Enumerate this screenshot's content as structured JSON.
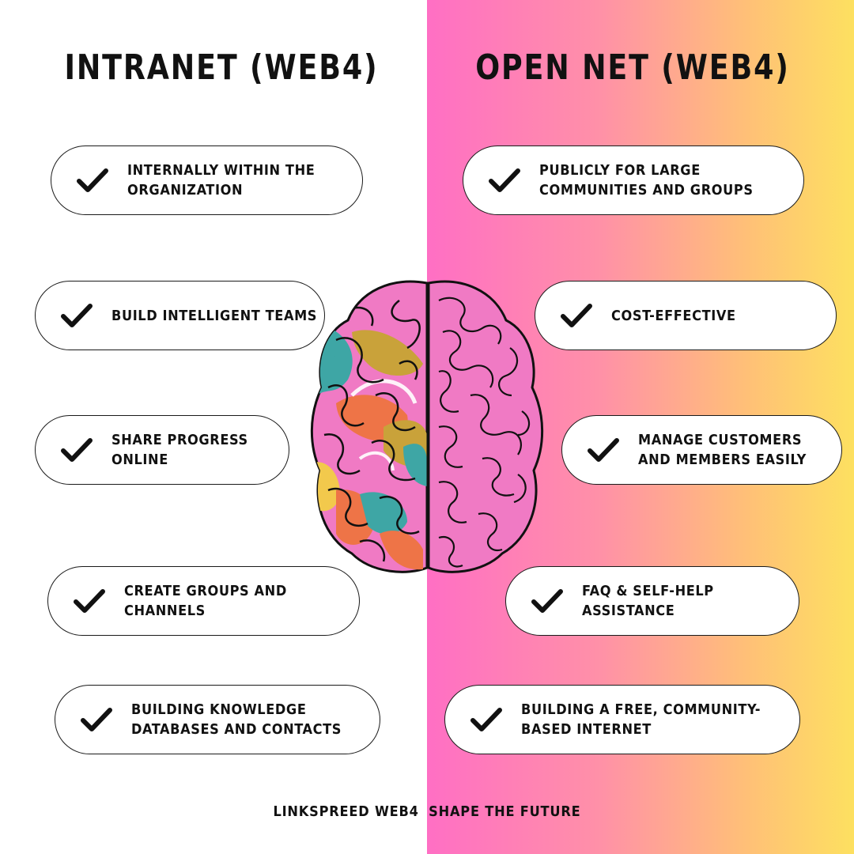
{
  "left": {
    "title": "INTRANET (WEB4)",
    "items": [
      {
        "text": "INTERNALLY WITHIN THE ORGANIZATION"
      },
      {
        "text": "BUILD INTELLIGENT TEAMS"
      },
      {
        "text": "SHARE PROGRESS ONLINE"
      },
      {
        "text": "CREATE GROUPS AND CHANNELS"
      },
      {
        "text": "BUILDING KNOWLEDGE DATABASES AND CONTACTS"
      }
    ]
  },
  "right": {
    "title": "OPEN NET (WEB4)",
    "items": [
      {
        "text": "PUBLICLY FOR LARGE COMMUNITIES AND GROUPS"
      },
      {
        "text": "COST-EFFECTIVE"
      },
      {
        "text": "MANAGE CUSTOMERS AND MEMBERS EASILY"
      },
      {
        "text": "FAQ & SELF-HELP ASSISTANCE"
      },
      {
        "text": "BUILDING A FREE, COMMUNITY-BASED INTERNET"
      }
    ]
  },
  "footer": {
    "brand": "LINKSPREED WEB4",
    "tagline": "SHAPE THE FUTURE"
  },
  "icons": {
    "check": "check-icon",
    "brain": "brain-illustration"
  },
  "colors": {
    "gradient_start": "#ff6fc4",
    "gradient_end": "#fde060",
    "brain_pink": "#f07ac4",
    "brain_teal": "#3ea6a5",
    "brain_mustard": "#c9a23a",
    "brain_orange": "#ee7447",
    "brain_yellow": "#f2c94c"
  }
}
